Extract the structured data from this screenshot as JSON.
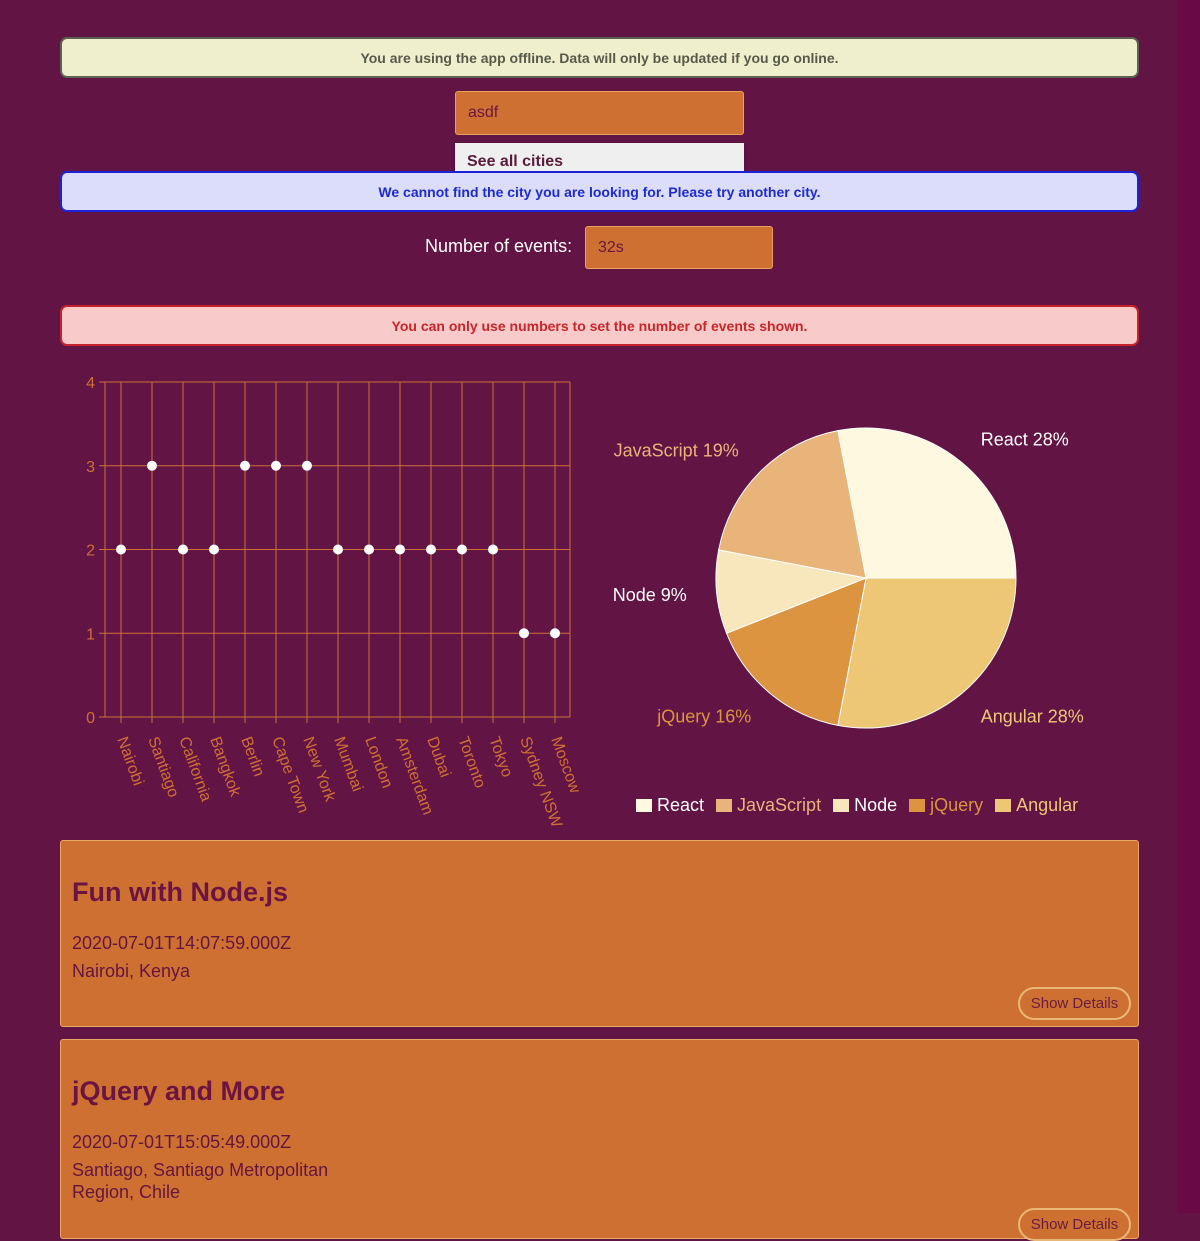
{
  "alerts": {
    "offline": "You are using the app offline. Data will only be updated if you go online.",
    "city_not_found": "We cannot find the city you are looking for. Please try another city.",
    "number_error": "You can only use numbers to set the number of events shown."
  },
  "city_search": {
    "value": "asdf",
    "suggestion": "See all cities"
  },
  "number_of_events": {
    "label": "Number of events:",
    "value": "32s"
  },
  "colors": {
    "background": "#621444",
    "accent": "#cf7033",
    "react": "#fff8e0",
    "javascript": "#e8b479",
    "node": "#f8e7bd",
    "jquery": "#dc9440",
    "angular": "#eec776"
  },
  "chart_data": [
    {
      "type": "scatter",
      "categories": [
        "Nairobi",
        "Santiago",
        "California",
        "Bangkok",
        "Berlin",
        "Cape Town",
        "New York",
        "Mumbai",
        "London",
        "Amsterdam",
        "Dubai",
        "Toronto",
        "Tokyo",
        "Sydney NSW",
        "Moscow"
      ],
      "values": [
        2,
        3,
        2,
        2,
        3,
        3,
        3,
        2,
        2,
        2,
        2,
        2,
        2,
        1,
        1
      ],
      "y_ticks": [
        "0",
        "1",
        "2",
        "3",
        "4"
      ],
      "ylim": [
        0,
        4
      ],
      "grid": true
    },
    {
      "type": "pie",
      "slices": [
        {
          "name": "React",
          "value": 28,
          "label": "React 28%"
        },
        {
          "name": "Angular",
          "value": 28,
          "label": "Angular 28%"
        },
        {
          "name": "jQuery",
          "value": 16,
          "label": "jQuery 16%"
        },
        {
          "name": "Node",
          "value": 9,
          "label": "Node 9%"
        },
        {
          "name": "JavaScript",
          "value": 19,
          "label": "JavaScript 19%"
        }
      ],
      "legend": [
        "React",
        "JavaScript",
        "Node",
        "jQuery",
        "Angular"
      ],
      "legend_placement": "bottom"
    }
  ],
  "events": [
    {
      "title": "Fun with Node.js",
      "time": "2020-07-01T14:07:59.000Z",
      "location": "Nairobi, Kenya",
      "button": "Show Details"
    },
    {
      "title": "jQuery and More",
      "time": "2020-07-01T15:05:49.000Z",
      "location": "Santiago, Santiago Metropolitan Region, Chile",
      "button": "Show Details"
    }
  ]
}
